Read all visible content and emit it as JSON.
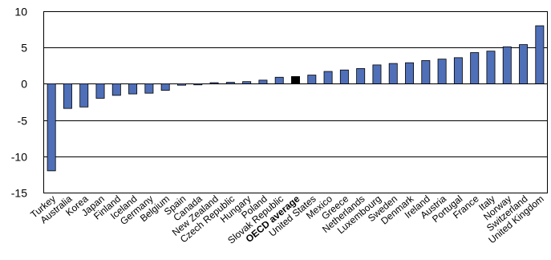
{
  "chart_data": {
    "type": "bar",
    "categories": [
      "Turkey",
      "Australia",
      "Korea",
      "Japan",
      "Finland",
      "Iceland",
      "Germany",
      "Belgium",
      "Spain",
      "Canada",
      "New Zealand",
      "Czech Republic",
      "Hungary",
      "Poland",
      "Slovak Republic",
      "OECD average",
      "United States",
      "Mexico",
      "Greece",
      "Netherlands",
      "Luxembourg",
      "Sweden",
      "Denmark",
      "Ireland",
      "Austria",
      "Portugal",
      "France",
      "Italy",
      "Norway",
      "Switzerland",
      "United Kingdom"
    ],
    "values": [
      -12.0,
      -3.4,
      -3.2,
      -2.0,
      -1.6,
      -1.4,
      -1.3,
      -0.9,
      -0.2,
      -0.15,
      0.15,
      0.2,
      0.3,
      0.5,
      0.9,
      1.0,
      1.2,
      1.7,
      1.9,
      2.1,
      2.6,
      2.8,
      2.9,
      3.2,
      3.4,
      3.6,
      4.3,
      4.5,
      5.1,
      5.4,
      8.0
    ],
    "highlight": "OECD average",
    "ylim": [
      -15,
      10
    ],
    "yticks": [
      10,
      5,
      0,
      -5,
      -10,
      -15
    ],
    "title": "",
    "xlabel": "",
    "ylabel": "",
    "grid": "horizontal",
    "bar_color": "#4f6fb8",
    "highlight_color": "#000000",
    "grid_color": "#000000"
  }
}
